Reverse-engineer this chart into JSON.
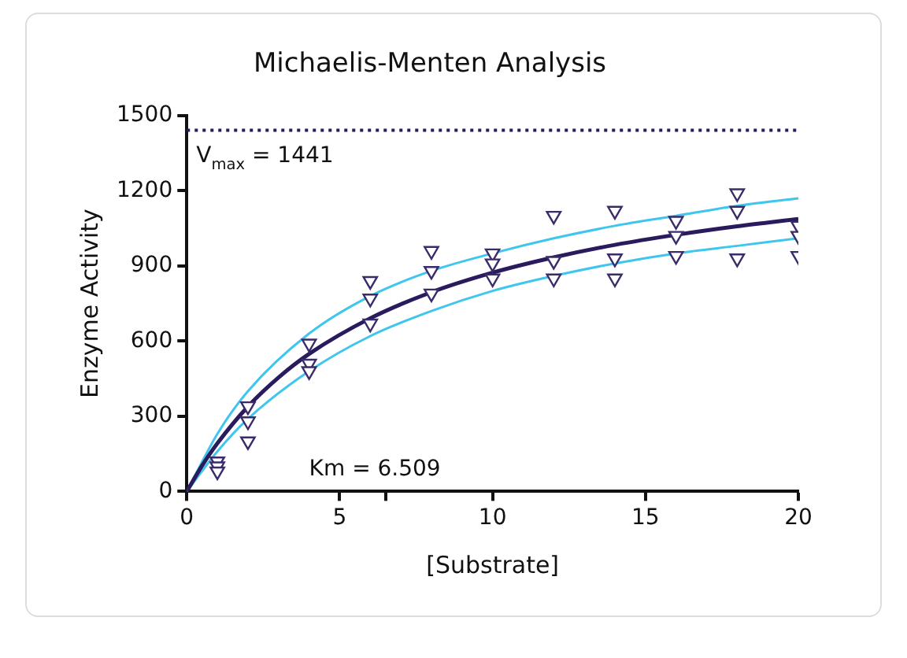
{
  "chart_data": {
    "type": "scatter",
    "title": "Michaelis-Menten Analysis",
    "xlabel": "[Substrate]",
    "ylabel": "Enzyme Activity",
    "xlim": [
      0,
      20
    ],
    "xticks": [
      0,
      5,
      {
        "value": 6.509,
        "label": null
      },
      10,
      15,
      20
    ],
    "ylim": [
      0,
      1500
    ],
    "yticks": [
      0,
      300,
      600,
      900,
      1200,
      1500
    ],
    "grid": false,
    "legend": false,
    "series": [
      {
        "type": "scatter",
        "marker": "triangle",
        "color": "#3b2b6b",
        "x": [
          1,
          1,
          1,
          2,
          2,
          2,
          4,
          4,
          4,
          6,
          6,
          6,
          8,
          8,
          8,
          10,
          10,
          10,
          12,
          12,
          12,
          14,
          14,
          14,
          16,
          16,
          16,
          18,
          18,
          18,
          20,
          20,
          20
        ],
        "values": [
          120,
          100,
          80,
          340,
          280,
          200,
          590,
          510,
          480,
          840,
          770,
          670,
          960,
          880,
          790,
          950,
          910,
          850,
          1100,
          920,
          850,
          1120,
          930,
          850,
          1080,
          1020,
          940,
          1190,
          1120,
          930,
          1060,
          1020,
          940
        ]
      },
      {
        "type": "line",
        "color": "#2a1a5e",
        "x": [
          0,
          0.5,
          1,
          2,
          3,
          4,
          6,
          8,
          10,
          12,
          14,
          16,
          18,
          20
        ],
        "values": [
          0,
          103,
          192,
          339,
          455,
          549,
          691,
          795,
          873,
          934,
          984,
          1024,
          1058,
          1087
        ]
      },
      {
        "type": "line",
        "color": "#3fc6ee",
        "x": [
          0,
          1,
          2,
          4,
          6,
          8,
          10,
          12,
          14,
          16,
          18,
          20
        ],
        "values": [
          0,
          230,
          400,
          630,
          780,
          880,
          950,
          1010,
          1060,
          1100,
          1140,
          1170
        ]
      },
      {
        "type": "line",
        "color": "#3fc6ee",
        "x": [
          0,
          1,
          2,
          4,
          6,
          8,
          10,
          12,
          14,
          16,
          18,
          20
        ],
        "values": [
          0,
          160,
          290,
          480,
          620,
          720,
          800,
          860,
          910,
          950,
          980,
          1010
        ]
      }
    ],
    "ref_lines": [
      {
        "axis": "y",
        "value": 1441,
        "label": "V$_{max}$ = 1441",
        "color": "#2a1a5e",
        "line_style": "dotted"
      }
    ],
    "annotations": [
      "Km = 6.509"
    ]
  }
}
